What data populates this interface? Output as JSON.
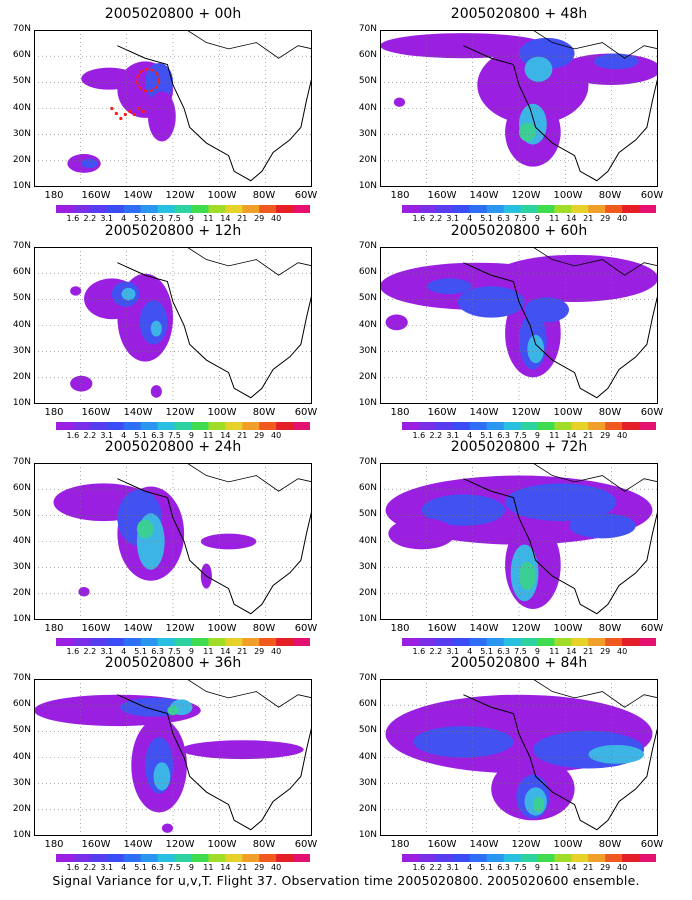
{
  "caption": "Signal Variance for u,v,T. Flight 37. Observation time 2005020800. 2005020600 ensemble.",
  "lat_labels": [
    "70N",
    "60N",
    "50N",
    "40N",
    "30N",
    "20N",
    "10N"
  ],
  "lon_labels": [
    "180",
    "160W",
    "140W",
    "120W",
    "100W",
    "80W",
    "60W"
  ],
  "colorbar": {
    "labels": [
      "1.6",
      "2.2",
      "3.1",
      "4",
      "5.1",
      "6.3",
      "7.5",
      "9",
      "11",
      "14",
      "21",
      "29",
      "40"
    ],
    "colors": [
      "#9b1fe0",
      "#7a2ee8",
      "#5a3cf0",
      "#3c4cf5",
      "#2d6ef5",
      "#2a96f0",
      "#28c0e0",
      "#2cd2a0",
      "#40dc50",
      "#a0dc28",
      "#e6d228",
      "#f0a028",
      "#f05a1e",
      "#e61e28",
      "#e6106e"
    ]
  },
  "panels": [
    {
      "title": "2005020800 + 00h",
      "lead": "00h"
    },
    {
      "title": "2005020800 + 48h",
      "lead": "48h"
    },
    {
      "title": "2005020800 + 12h",
      "lead": "12h"
    },
    {
      "title": "2005020800 + 60h",
      "lead": "60h"
    },
    {
      "title": "2005020800 + 24h",
      "lead": "24h"
    },
    {
      "title": "2005020800 + 72h",
      "lead": "72h"
    },
    {
      "title": "2005020800 + 36h",
      "lead": "36h"
    },
    {
      "title": "2005020800 + 84h",
      "lead": "84h"
    }
  ]
}
